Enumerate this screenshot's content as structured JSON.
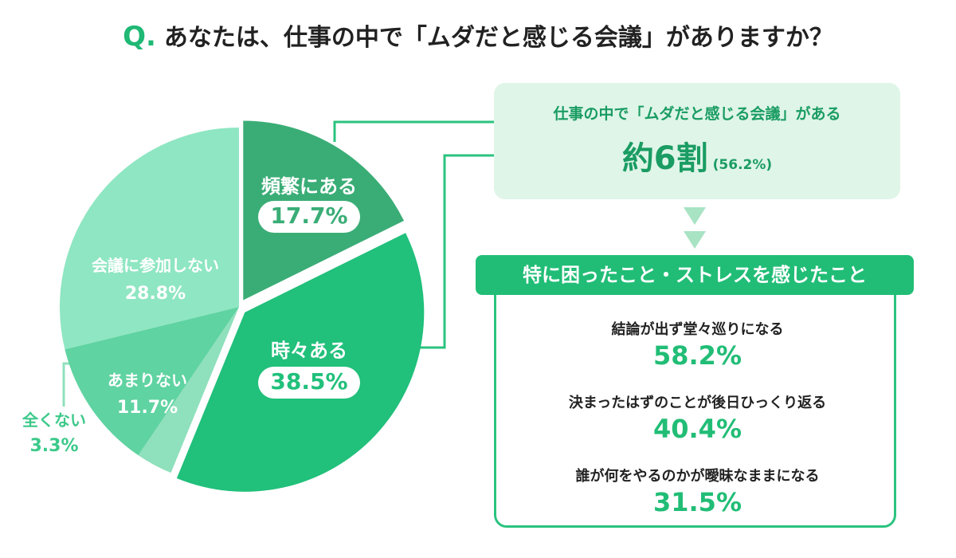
{
  "title": {
    "prefix": "Q.",
    "question": "あなたは、仕事の中で「ムダだと感じる会議」がありますか？"
  },
  "chart_data": {
    "type": "pie",
    "start": "12 o'clock",
    "direction": "clockwise",
    "slices": [
      {
        "label": "頻繁にある",
        "value": 17.7,
        "value_text": "17.7%",
        "color": "#3aad76",
        "label_style": "pill"
      },
      {
        "label": "時々ある",
        "value": 38.5,
        "value_text": "38.5%",
        "color": "#21c07b",
        "label_style": "pill"
      },
      {
        "label": "全くない",
        "value": 3.3,
        "value_text": "3.3%",
        "color": "#8fe0bd",
        "label_style": "outside"
      },
      {
        "label": "あまりない",
        "value": 11.7,
        "value_text": "11.7%",
        "color": "#5fd3a1",
        "label_style": "plain"
      },
      {
        "label": "会議に参加しない",
        "value": 28.8,
        "value_text": "28.8%",
        "color": "#8fe6c2",
        "label_style": "plain"
      }
    ],
    "exploded_slices": [
      "頻繁にある",
      "時々ある"
    ]
  },
  "summary": {
    "label": "仕事の中で「ムダだと感じる会議」がある",
    "value_big": "約6割",
    "value_pct": "(56.2%)"
  },
  "detail": {
    "header": "特に困ったこと・ストレスを感じたこと",
    "items": [
      {
        "text": "結論が出ず堂々巡りになる",
        "value": "58.2%"
      },
      {
        "text": "決まったはずのことが後日ひっくり返る",
        "value": "40.4%"
      },
      {
        "text": "誰が何をやるのかが曖昧なままになる",
        "value": "31.5%"
      }
    ]
  },
  "colors": {
    "accent": "#21bd76",
    "accent_dark": "#1a9c63",
    "summary_bg": "#dff5e8",
    "arrow": "#a8e3c4",
    "connector": "#2bc37e"
  }
}
